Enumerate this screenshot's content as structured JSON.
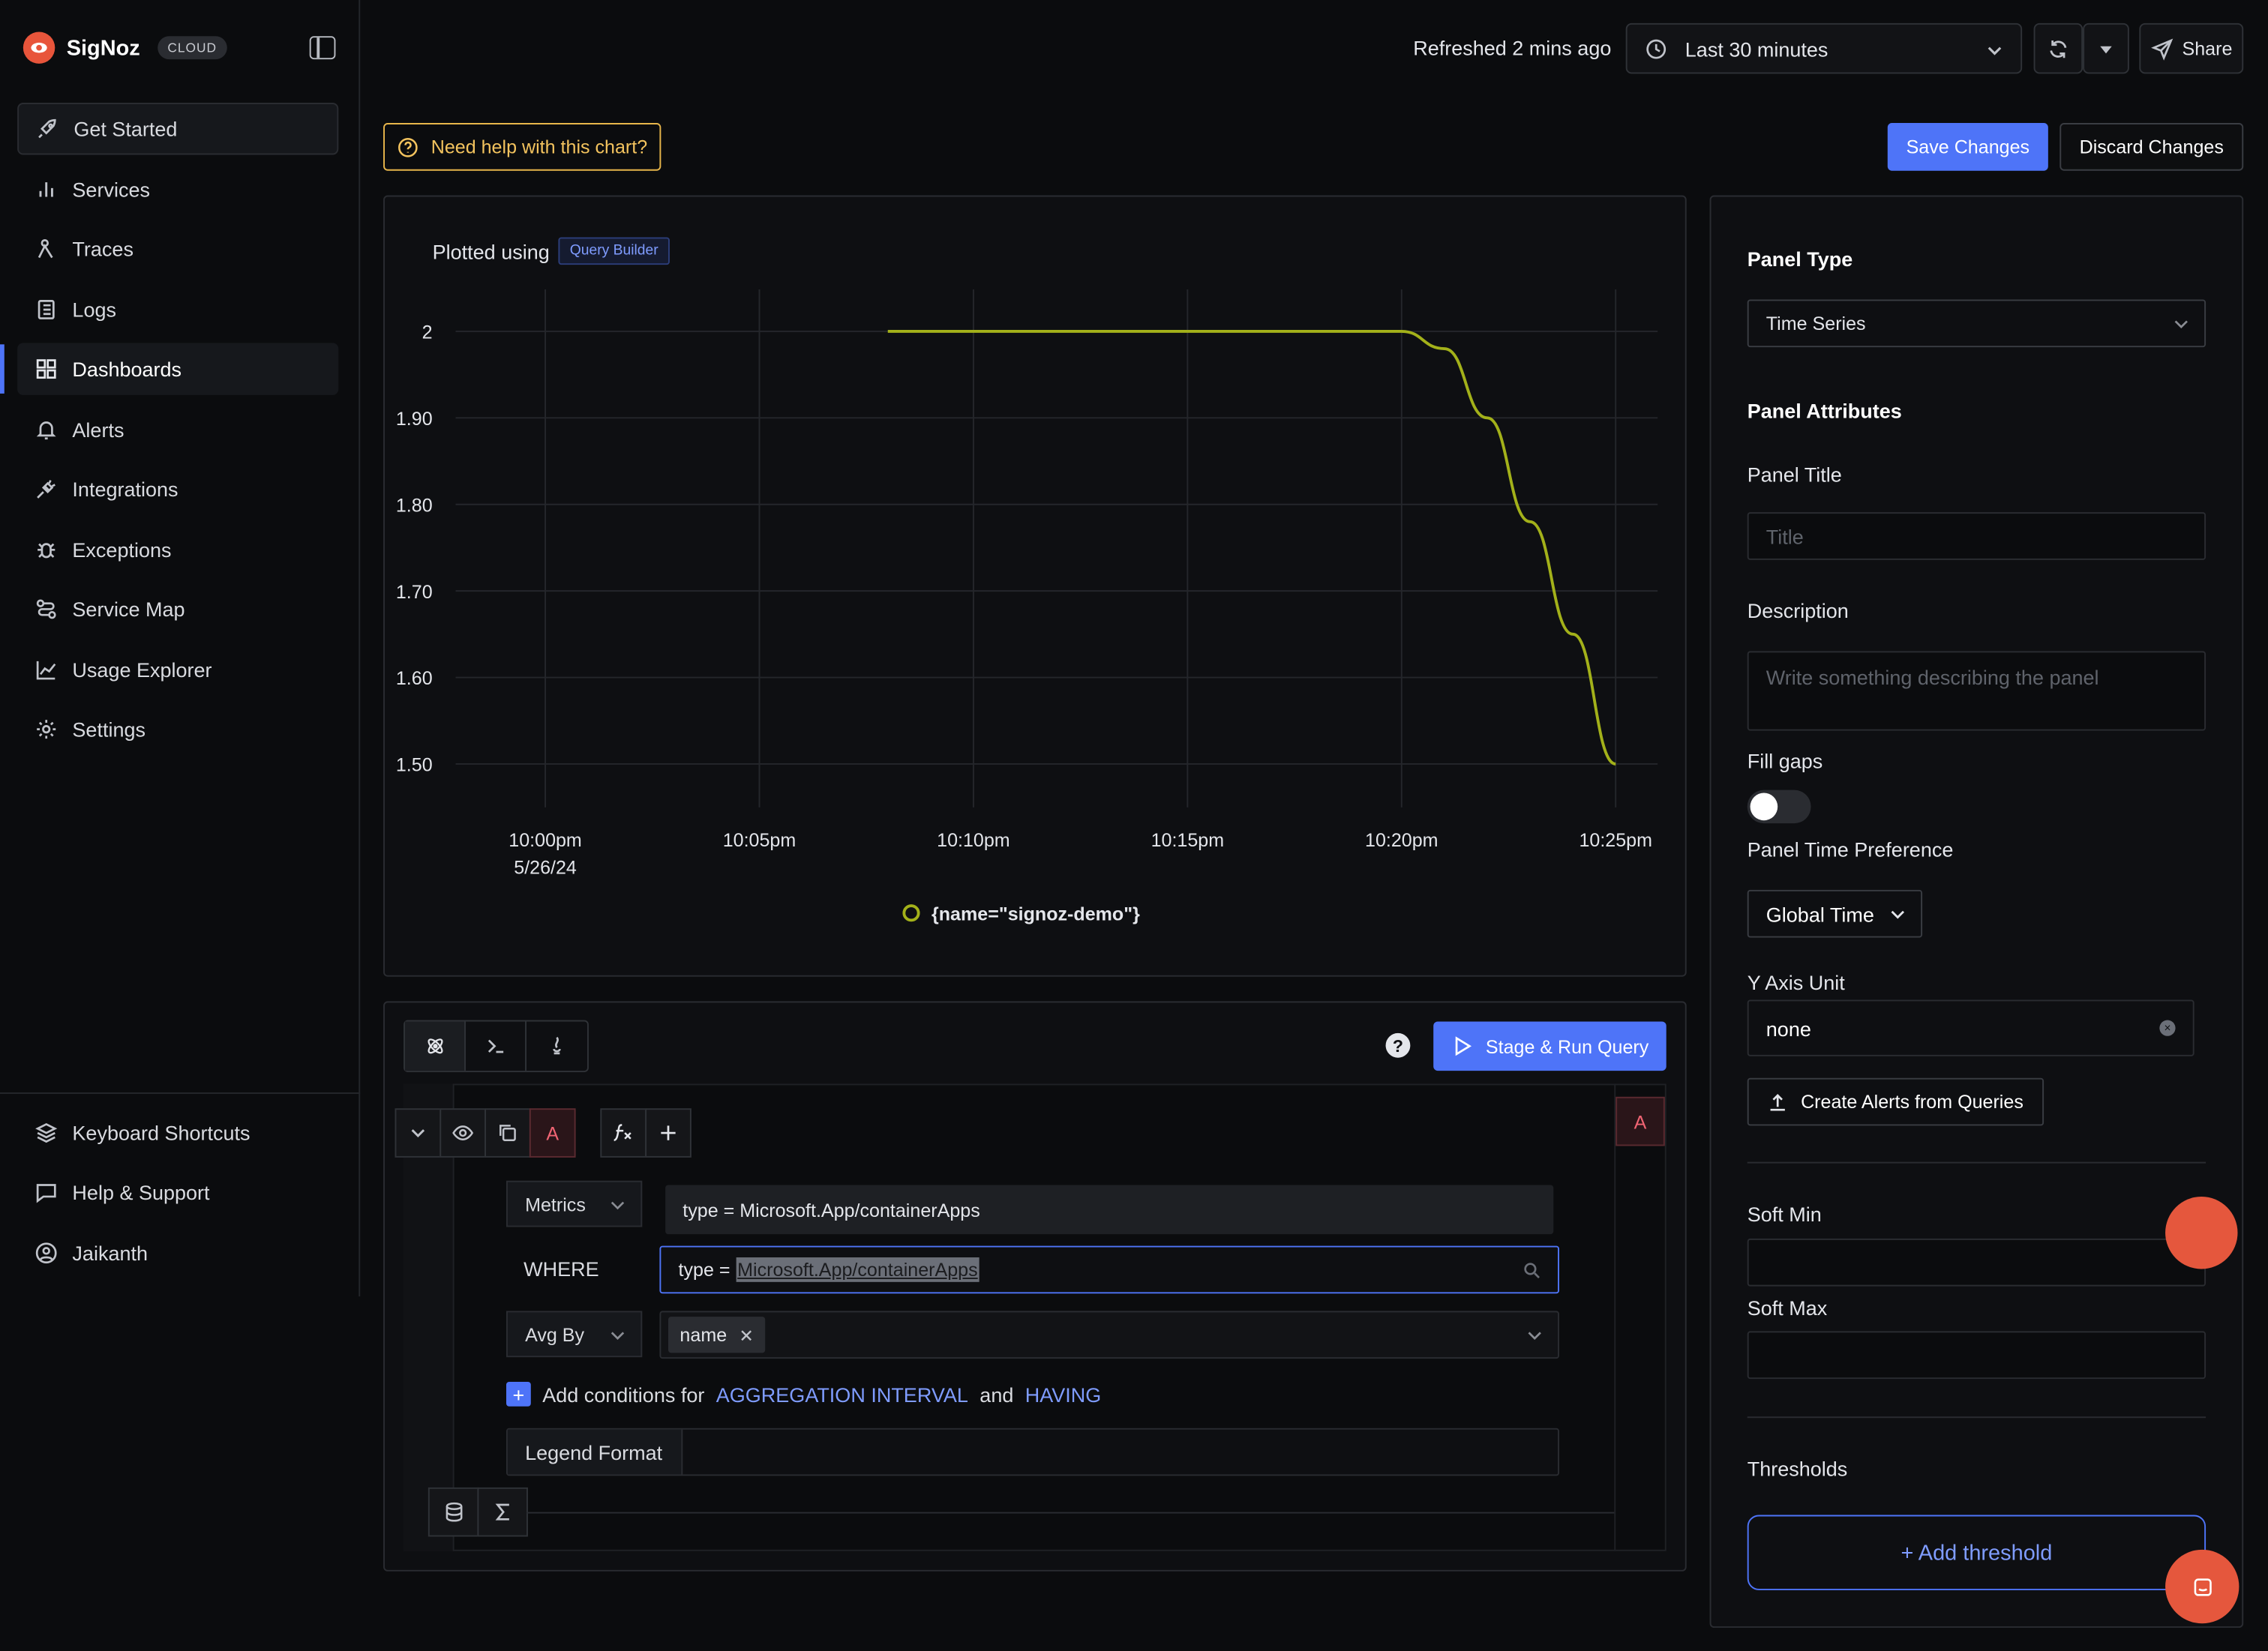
{
  "app": {
    "name": "SigNoz",
    "badge": "CLOUD"
  },
  "sidebar": {
    "items": [
      {
        "label": "Get Started",
        "icon": "rocket-icon"
      },
      {
        "label": "Services",
        "icon": "bar-chart-icon"
      },
      {
        "label": "Traces",
        "icon": "traces-icon"
      },
      {
        "label": "Logs",
        "icon": "logs-icon"
      },
      {
        "label": "Dashboards",
        "icon": "grid-icon"
      },
      {
        "label": "Alerts",
        "icon": "bell-icon"
      },
      {
        "label": "Integrations",
        "icon": "plug-icon"
      },
      {
        "label": "Exceptions",
        "icon": "bug-icon"
      },
      {
        "label": "Service Map",
        "icon": "route-icon"
      },
      {
        "label": "Usage Explorer",
        "icon": "line-chart-icon"
      },
      {
        "label": "Settings",
        "icon": "gear-icon"
      }
    ],
    "bottom": [
      {
        "label": "Keyboard Shortcuts",
        "icon": "layers-icon"
      },
      {
        "label": "Help & Support",
        "icon": "message-icon"
      },
      {
        "label": "Jaikanth",
        "icon": "user-icon"
      }
    ],
    "active": "Dashboards"
  },
  "header": {
    "refreshed": "Refreshed 2 mins ago",
    "time_range": "Last 30 minutes",
    "share": "Share"
  },
  "toolbar": {
    "help": "Need help with this chart?",
    "save": "Save Changes",
    "discard": "Discard Changes"
  },
  "chart": {
    "plotted_using": "Plotted using",
    "badge": "Query Builder",
    "legend": "{name=\"signoz-demo\"}",
    "x_ticks": [
      "10:00pm",
      "10:05pm",
      "10:10pm",
      "10:15pm",
      "10:20pm",
      "10:25pm"
    ],
    "x_date": "5/26/24",
    "y_ticks": [
      "2",
      "1.90",
      "1.80",
      "1.70",
      "1.60",
      "1.50"
    ],
    "line_color": "#a3b11a"
  },
  "chart_data": {
    "type": "line",
    "x": [
      "10:08pm",
      "10:10pm",
      "10:15pm",
      "10:20pm",
      "10:21pm",
      "10:22pm",
      "10:23pm",
      "10:24pm",
      "10:25pm"
    ],
    "series": [
      {
        "name": "{name=\"signoz-demo\"}",
        "values": [
          2,
          2,
          2,
          2,
          1.98,
          1.9,
          1.78,
          1.65,
          1.5
        ]
      }
    ],
    "ylim": [
      1.5,
      2
    ],
    "grid": true,
    "legend_position": "bottom"
  },
  "query": {
    "run_button": "Stage & Run Query",
    "query_name": "A",
    "data_source": "Metrics",
    "suggestion": "type = Microsoft.App/containerApps",
    "where_label": "WHERE",
    "where_prefix": "type =",
    "where_selected": "Microsoft.App/containerApps",
    "avg_by": "Avg By",
    "group_tag": "name",
    "add_conditions": "Add conditions for",
    "agg_interval": "AGGREGATION INTERVAL",
    "and": "and",
    "having": "HAVING",
    "legend_format": "Legend Format"
  },
  "config": {
    "panel_type_h": "Panel Type",
    "panel_type": "Time Series",
    "panel_attributes_h": "Panel Attributes",
    "panel_title_l": "Panel Title",
    "panel_title_ph": "Title",
    "description_l": "Description",
    "description_ph": "Write something describing the  panel",
    "fill_gaps_l": "Fill gaps",
    "time_pref_l": "Panel Time Preference",
    "time_pref": "Global Time",
    "y_axis_l": "Y Axis Unit",
    "y_axis": "none",
    "create_alerts": "Create Alerts from Queries",
    "soft_min_l": "Soft Min",
    "soft_max_l": "Soft Max",
    "thresholds_l": "Thresholds",
    "add_threshold": "+ Add threshold"
  }
}
